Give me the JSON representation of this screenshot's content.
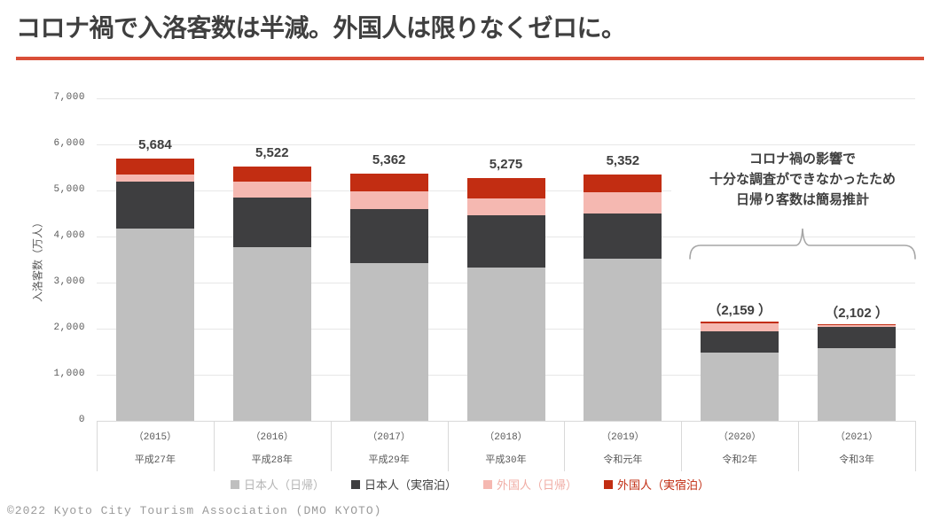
{
  "page": {
    "title": "コロナ禍で入洛客数は半減。外国人は限りなくゼロに。",
    "footer": "©2022 Kyoto City Tourism Association (DMO KYOTO)"
  },
  "colors": {
    "title_text": "#3f3f3f",
    "title_rule": "#d94f38",
    "axis_text": "#595959",
    "gridline": "#e7e7e7",
    "axis_line": "#d9d9d9",
    "brace": "#a6a6a6",
    "footer_text": "#9a9a9a"
  },
  "chart_data": {
    "type": "bar",
    "stacked": true,
    "title": "",
    "xlabel": "",
    "ylabel": "入洛客数（万人）",
    "ylim": [
      0,
      7000
    ],
    "ytick_step": 1000,
    "ytick_labels": [
      "0",
      "1,000",
      "2,000",
      "3,000",
      "4,000",
      "5,000",
      "6,000",
      "7,000"
    ],
    "grid": true,
    "legend_position": "bottom",
    "categories": [
      {
        "year": "（2015）",
        "era": "平成27年"
      },
      {
        "year": "（2016）",
        "era": "平成28年"
      },
      {
        "year": "（2017）",
        "era": "平成29年"
      },
      {
        "year": "（2018）",
        "era": "平成30年"
      },
      {
        "year": "（2019）",
        "era": "令和元年"
      },
      {
        "year": "（2020）",
        "era": "令和2年"
      },
      {
        "year": "（2021）",
        "era": "令和3年"
      }
    ],
    "series": [
      {
        "name": "日本人（日帰）",
        "color": "#bfbfbf",
        "label_color": "#b5b5b5",
        "values": [
          4165,
          3770,
          3420,
          3330,
          3525,
          1490,
          1570
        ]
      },
      {
        "name": "日本人（実宿泊）",
        "color": "#3e3e40",
        "label_color": "#3f3f3f",
        "values": [
          1020,
          1080,
          1170,
          1135,
          980,
          458,
          465
        ]
      },
      {
        "name": "外国人（日帰）",
        "color": "#f5b8b1",
        "label_color": "#f0ada5",
        "values": [
          155,
          350,
          400,
          360,
          462,
          173,
          42
        ]
      },
      {
        "name": "外国人（実宿泊）",
        "color": "#c22d12",
        "label_color": "#c22d12",
        "values": [
          344,
          322,
          372,
          450,
          385,
          38,
          25
        ]
      }
    ],
    "totals": [
      "5,684",
      "5,522",
      "5,362",
      "5,275",
      "5,352",
      "（2,159 ）",
      "（2,102 ）"
    ],
    "annotation": {
      "lines": [
        "コロナ禍の影響で",
        "十分な調査ができなかったため",
        "日帰り客数は簡易推計"
      ],
      "applies_to_categories": [
        "（2020）",
        "（2021）"
      ]
    }
  }
}
